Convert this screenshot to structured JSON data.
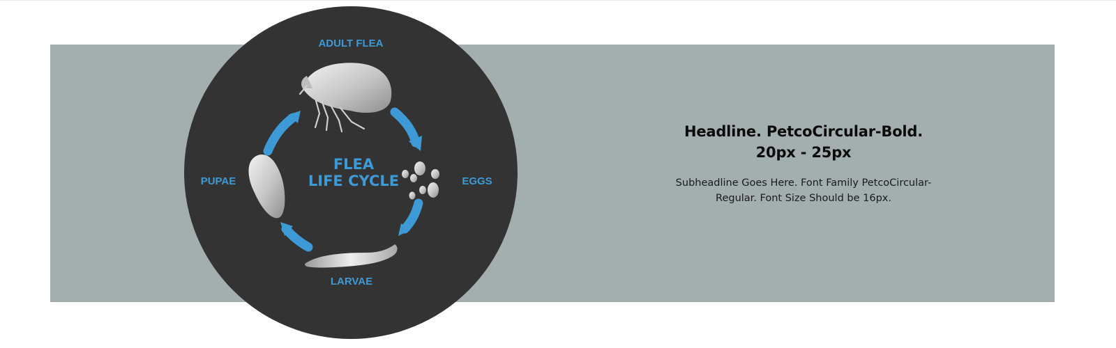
{
  "graphic": {
    "center_title": [
      "FLEA",
      "LIFE CYCLE"
    ],
    "stages": {
      "adult": "ADULT FLEA",
      "eggs": "EGGS",
      "larvae": "LARVAE",
      "pupae": "PUPAE"
    },
    "colors": {
      "circle": "#333333",
      "accent": "#3d9ad6",
      "silhouette": "#c9c9c9"
    }
  },
  "banner": {
    "background": "#a3afae"
  },
  "content": {
    "headline_lines": [
      "Headline. PetcoCircular-Bold.",
      "20px - 25px"
    ],
    "subheadline_lines": [
      "Subheadline Goes Here. Font Family PetcoCircular-",
      "Regular. Font Size Should be 16px."
    ]
  }
}
